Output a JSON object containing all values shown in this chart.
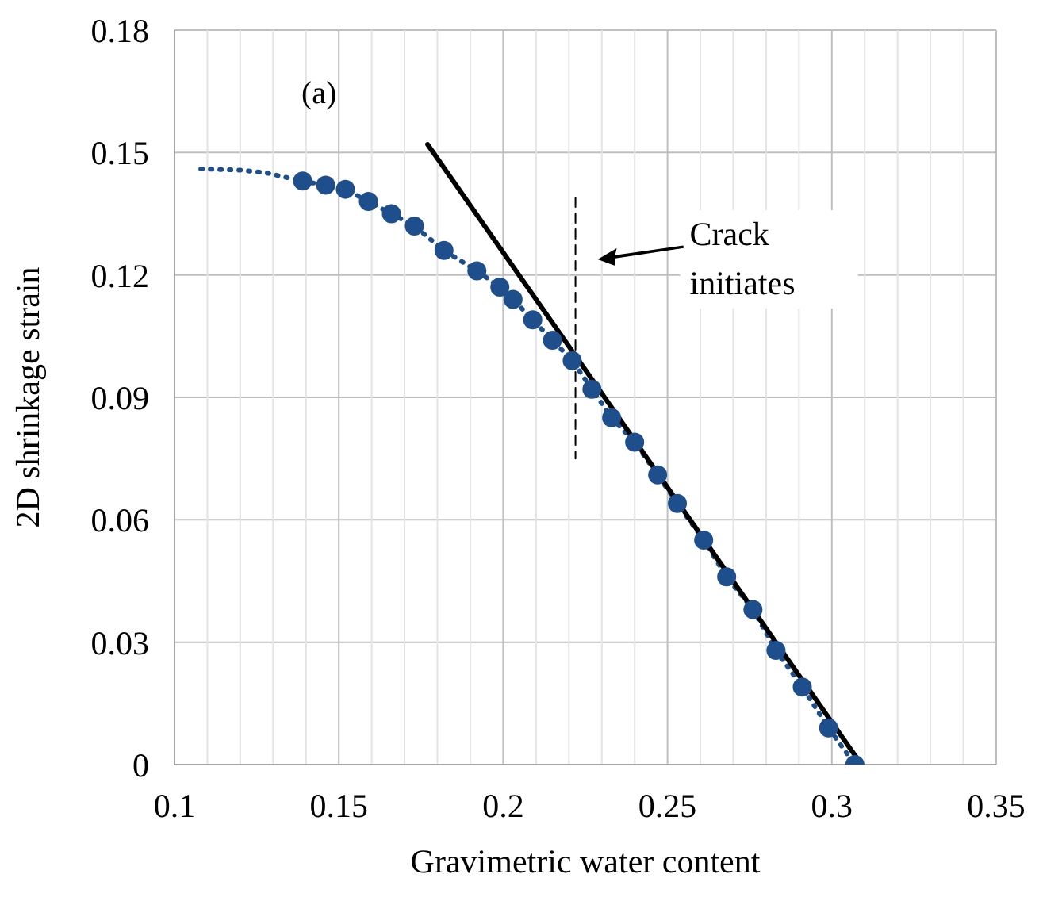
{
  "chart_data": {
    "type": "line",
    "xlabel": "Gravimetric water content",
    "ylabel": "2D shrinkage strain",
    "xlim": [
      0.1,
      0.35
    ],
    "ylim": [
      0,
      0.18
    ],
    "xticks": [
      0.1,
      {
        "value": 0.11,
        "label": null
      },
      {
        "value": 0.12,
        "label": null
      },
      {
        "value": 0.13,
        "label": null
      },
      {
        "value": 0.14,
        "label": null
      },
      0.15,
      {
        "value": 0.16,
        "label": null
      },
      {
        "value": 0.17,
        "label": null
      },
      {
        "value": 0.18,
        "label": null
      },
      {
        "value": 0.19,
        "label": null
      },
      0.2,
      {
        "value": 0.21,
        "label": null
      },
      {
        "value": 0.22,
        "label": null
      },
      {
        "value": 0.23,
        "label": null
      },
      {
        "value": 0.24,
        "label": null
      },
      0.25,
      {
        "value": 0.26,
        "label": null
      },
      {
        "value": 0.27,
        "label": null
      },
      {
        "value": 0.28,
        "label": null
      },
      {
        "value": 0.29,
        "label": null
      },
      0.3,
      {
        "value": 0.31,
        "label": null
      },
      {
        "value": 0.32,
        "label": null
      },
      {
        "value": 0.33,
        "label": null
      },
      {
        "value": 0.34,
        "label": null
      },
      0.35
    ],
    "yticks": [
      0,
      0.03,
      0.06,
      0.09,
      0.12,
      0.15,
      0.18
    ],
    "grid": true,
    "series": [
      {
        "color": "#1f4e8c",
        "marker": "none",
        "line_style": "dotted",
        "x": [
          0.108,
          0.12,
          0.128,
          0.139
        ],
        "values": [
          0.146,
          0.1457,
          0.145,
          0.143
        ]
      },
      {
        "color": "#1f4e8c",
        "marker": "circle",
        "line_style": "dotted",
        "x": [
          0.139,
          0.146,
          0.152,
          0.159,
          0.166,
          0.173,
          0.182,
          0.192,
          0.199,
          0.203,
          0.209,
          0.215,
          0.221,
          0.227,
          0.233,
          0.24,
          0.247,
          0.253,
          0.261,
          0.268,
          0.276,
          0.283,
          0.291,
          0.299,
          0.307
        ],
        "values": [
          0.143,
          0.142,
          0.141,
          0.138,
          0.135,
          0.132,
          0.126,
          0.121,
          0.117,
          0.114,
          0.109,
          0.104,
          0.099,
          0.092,
          0.085,
          0.079,
          0.071,
          0.064,
          0.055,
          0.046,
          0.038,
          0.028,
          0.019,
          0.009,
          0
        ]
      },
      {
        "color": "#000000",
        "marker": "none",
        "line_style": "solid",
        "x": [
          0.177,
          0.309
        ],
        "values": [
          0.152,
          0
        ]
      },
      {
        "color": "#000000",
        "marker": "none",
        "line_style": "dashed",
        "x": [
          0.222,
          0.222
        ],
        "values": [
          0.139,
          0.075
        ]
      }
    ],
    "annotations": [
      "(a)",
      "Crack initiates"
    ]
  }
}
